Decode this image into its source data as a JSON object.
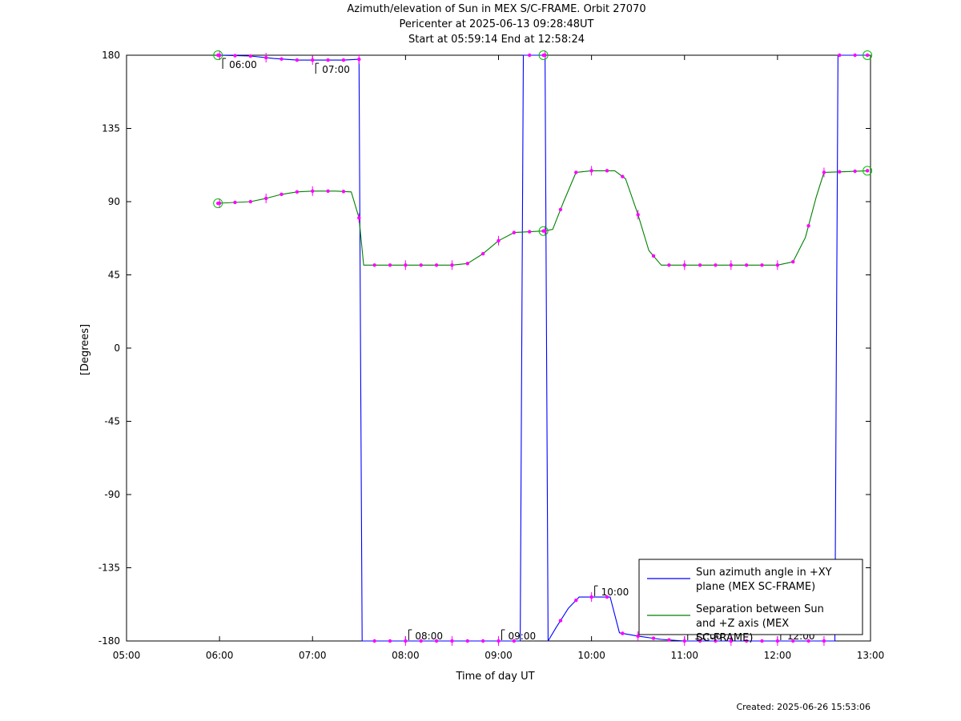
{
  "title_lines": [
    "Azimuth/elevation of Sun in MEX S/C-FRAME.  Orbit 27070",
    "Pericenter at 2025-06-13 09:28:48UT",
    "Start at 05:59:14 End at 12:58:24"
  ],
  "footer": "Created: 2025-06-26 15:53:06",
  "chart_data": {
    "type": "line",
    "xlabel": "Time of day UT",
    "ylabel": "[Degrees]",
    "xlim": [
      "05:00",
      "13:00"
    ],
    "ylim": [
      -180,
      180
    ],
    "x_ticks": [
      "05:00",
      "06:00",
      "07:00",
      "08:00",
      "09:00",
      "10:00",
      "11:00",
      "12:00",
      "13:00"
    ],
    "y_ticks": [
      180,
      135,
      90,
      45,
      0,
      -45,
      -90,
      -135,
      -180
    ],
    "grid": false,
    "legend_position": "bottom-right",
    "series": [
      {
        "name": "Sun azimuth angle in +XY plane (MEX SC-FRAME)",
        "color": "#0000ff",
        "x": [
          "05:59",
          "06:20",
          "06:35",
          "06:50",
          "07:05",
          "07:20",
          "07:30",
          "07:31",
          "07:32",
          "07:45",
          "08:00",
          "08:30",
          "09:00",
          "09:14",
          "09:15",
          "09:16",
          "09:30",
          "09:31",
          "09:32",
          "09:37",
          "09:45",
          "09:52",
          "10:00",
          "10:12",
          "10:18",
          "10:30",
          "10:45",
          "11:00",
          "11:30",
          "12:00",
          "12:37",
          "12:38",
          "12:39",
          "12:58"
        ],
        "y": [
          180,
          179.5,
          178,
          177,
          177,
          177,
          177.5,
          0,
          -180,
          -180,
          -180,
          -180,
          -180,
          -180,
          0,
          180,
          180,
          0,
          -180,
          -172,
          -160,
          -153,
          -153,
          -153,
          -175,
          -177,
          -179,
          -180,
          -180,
          -180,
          -180,
          0,
          180,
          180
        ]
      },
      {
        "name": "Separation between Sun and +Z axis (MEX SC-FRAME)",
        "color": "#008000",
        "x": [
          "05:59",
          "06:20",
          "06:30",
          "06:40",
          "06:50",
          "07:00",
          "07:15",
          "07:25",
          "07:30",
          "07:33",
          "07:45",
          "08:00",
          "08:30",
          "08:40",
          "08:50",
          "09:00",
          "09:10",
          "09:20",
          "09:30",
          "09:35",
          "09:42",
          "09:50",
          "10:00",
          "10:15",
          "10:22",
          "10:30",
          "10:37",
          "10:45",
          "11:00",
          "11:30",
          "12:00",
          "12:10",
          "12:18",
          "12:25",
          "12:30",
          "12:45",
          "12:58"
        ],
        "y": [
          89,
          90,
          92,
          94.5,
          96,
          96.5,
          96.5,
          96,
          80,
          51,
          51,
          51,
          51,
          52,
          58,
          66,
          71,
          71.5,
          72,
          73,
          90,
          108,
          109,
          109,
          104,
          82,
          60,
          51,
          51,
          51,
          51,
          53,
          68,
          93,
          108,
          108.5,
          109
        ]
      }
    ],
    "annotations": [
      {
        "label": "06:00",
        "x": "06:00",
        "y": 180
      },
      {
        "label": "07:00",
        "x": "07:00",
        "y": 177
      },
      {
        "label": "08:00",
        "x": "08:00",
        "y": -180
      },
      {
        "label": "09:00",
        "x": "09:00",
        "y": -180
      },
      {
        "label": "10:00",
        "x": "10:00",
        "y": -153
      },
      {
        "label": "11:00",
        "x": "11:00",
        "y": -180
      },
      {
        "label": "12:00",
        "x": "12:00",
        "y": -180
      }
    ]
  }
}
